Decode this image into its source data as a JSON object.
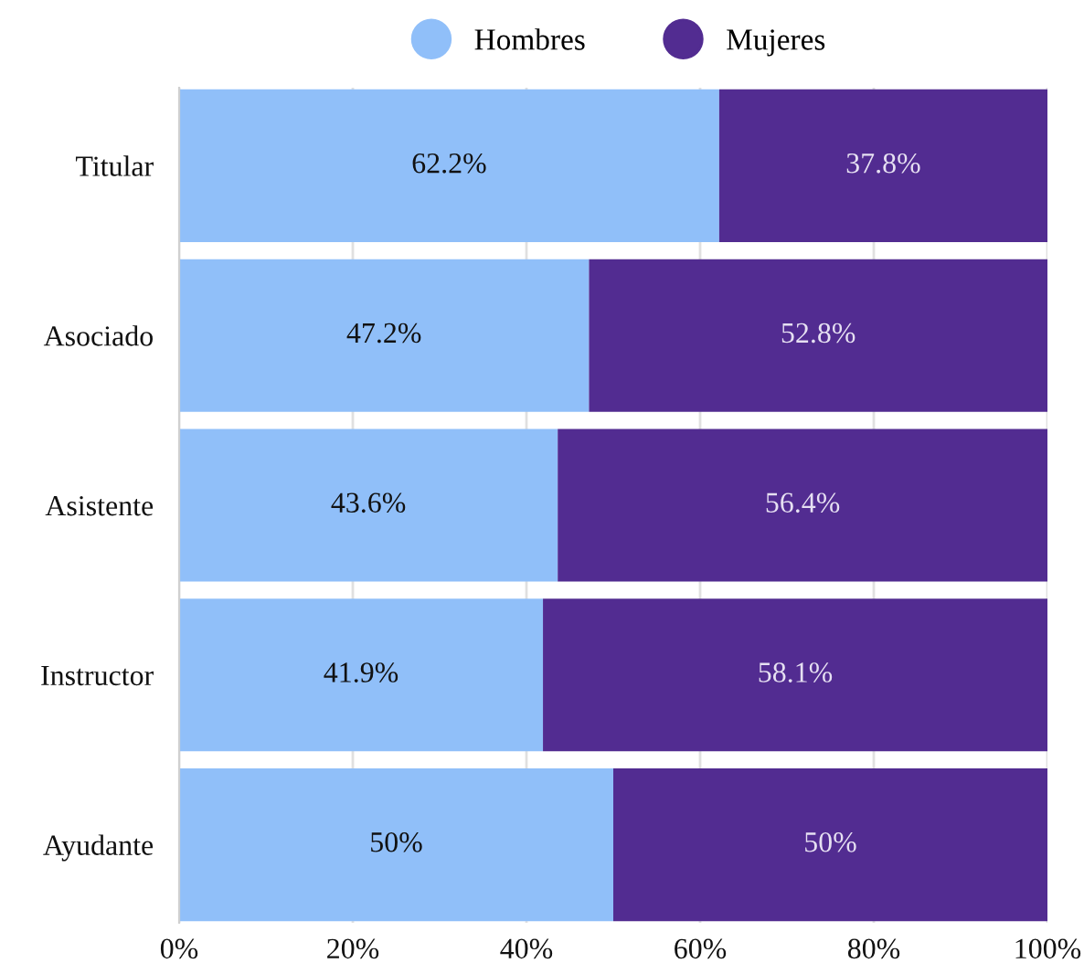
{
  "chart_data": {
    "type": "bar",
    "orientation": "horizontal",
    "stacked": true,
    "categories": [
      "Titular",
      "Asociado",
      "Asistente",
      "Instructor",
      "Ayudante"
    ],
    "series": [
      {
        "name": "Hombres",
        "color": "#90bff9",
        "values": [
          62.2,
          47.2,
          43.6,
          41.9,
          50
        ],
        "value_labels": [
          "62.2%",
          "47.2%",
          "43.6%",
          "41.9%",
          "50%"
        ]
      },
      {
        "name": "Mujeres",
        "color": "#522c91",
        "values": [
          37.8,
          52.8,
          56.4,
          58.1,
          50
        ],
        "value_labels": [
          "37.8%",
          "52.8%",
          "56.4%",
          "58.1%",
          "50%"
        ]
      }
    ],
    "xlim": [
      0,
      100
    ],
    "xticks": [
      {
        "value": 0,
        "label": "0%"
      },
      {
        "value": 20,
        "label": "20%"
      },
      {
        "value": 40,
        "label": "40%"
      },
      {
        "value": 60,
        "label": "60%"
      },
      {
        "value": 80,
        "label": "80%"
      },
      {
        "value": 100,
        "label": "100%"
      }
    ],
    "grid": "x",
    "legend": "top",
    "marker": "circle"
  }
}
